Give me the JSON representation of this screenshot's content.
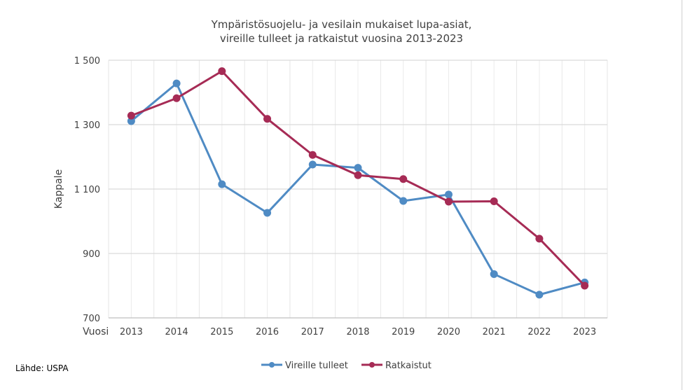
{
  "chart_data": {
    "type": "line",
    "title_lines": [
      "Ympäristösuojelu- ja vesilain mukaiset lupa-asiat,",
      "vireille tulleet ja ratkaistut vuosina 2013-2023"
    ],
    "xlabel": "Vuosi",
    "ylabel": "Kappale",
    "categories": [
      "2013",
      "2014",
      "2015",
      "2016",
      "2017",
      "2018",
      "2019",
      "2020",
      "2021",
      "2022",
      "2023"
    ],
    "ylim": [
      700,
      1500
    ],
    "yticks": [
      700,
      900,
      1100,
      1300,
      1500
    ],
    "ytick_labels": [
      "700",
      "900",
      "1 100",
      "1 300",
      "1 500"
    ],
    "grid": true,
    "legend_position": "bottom",
    "series": [
      {
        "name": "Vireille tulleet",
        "color": "#4f8bc4",
        "values": [
          1311,
          1428,
          1115,
          1026,
          1176,
          1166,
          1063,
          1083,
          836,
          772,
          810
        ]
      },
      {
        "name": "Ratkaistut",
        "color": "#a62b55",
        "values": [
          1328,
          1382,
          1466,
          1318,
          1206,
          1143,
          1131,
          1061,
          1062,
          946,
          800
        ]
      }
    ]
  },
  "source": "Lähde: USPA"
}
